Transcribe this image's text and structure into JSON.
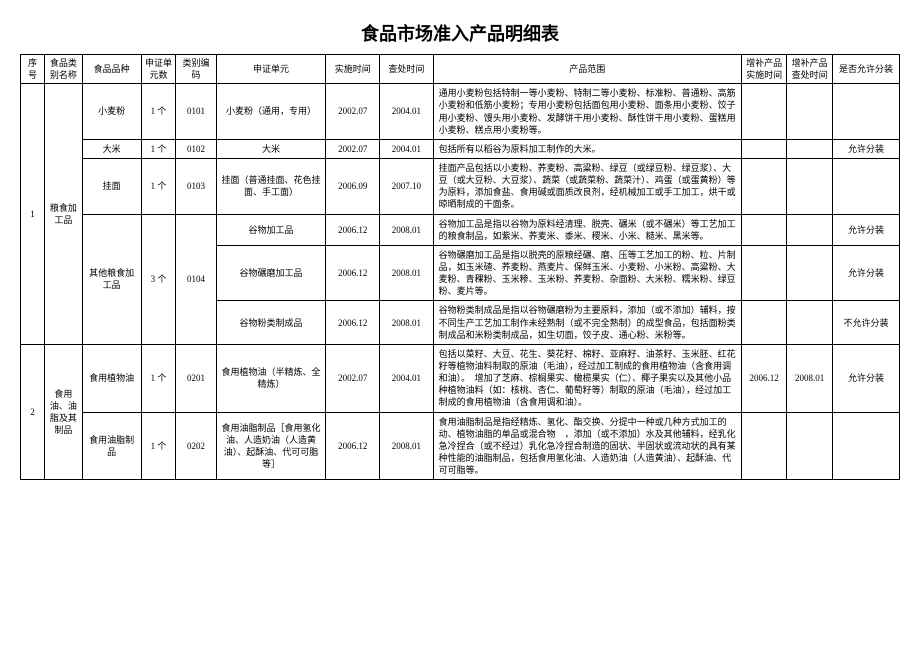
{
  "title": "食品市场准入产品明细表",
  "headers": {
    "seq": "序号",
    "cat": "食品类别名称",
    "var": "食品品种",
    "ucnt": "申证单元数",
    "ccode": "类别编码",
    "unit": "申证单元",
    "itime": "实施时间",
    "ctime": "查处时间",
    "scope": "产品范围",
    "atime": "增补产品实施时间",
    "btime": "增补产品查处时间",
    "split": "是否允许分装"
  },
  "rows": {
    "r1": {
      "seq": "1",
      "cat": "粮食加工品",
      "var": "小麦粉",
      "ucnt": "1 个",
      "ccode": "0101",
      "unit": "小麦粉（通用，专用）",
      "itime": "2002.07",
      "ctime": "2004.01",
      "scope": "通用小麦粉包括特制一等小麦粉、特制二等小麦粉、标准粉、普通粉、高筋小麦粉和低筋小麦粉；专用小麦粉包括面包用小麦粉、面条用小麦粉、饺子用小麦粉、馒头用小麦粉、发酵饼干用小麦粉、酥性饼干用小麦粉、蛋糕用小麦粉、糕点用小麦粉等。",
      "split": ""
    },
    "r2": {
      "var": "大米",
      "ucnt": "1 个",
      "ccode": "0102",
      "unit": "大米",
      "itime": "2002.07",
      "ctime": "2004.01",
      "scope": "包括所有以稻谷为原料加工制作的大米。",
      "split": "允许分装"
    },
    "r3": {
      "var": "挂面",
      "ucnt": "1 个",
      "ccode": "0103",
      "unit": "挂面（普通挂面、花色挂面、手工面）",
      "itime": "2006.09",
      "ctime": "2007.10",
      "scope": "挂面产品包括以小麦粉、荞麦粉、高粱粉、绿豆（或绿豆粉、绿豆浆）、大豆（或大豆粉、大豆浆）、蔬菜（或蔬菜粉、蔬菜汁）、鸡蛋（或蛋黄粉）等为原料，添加食盐、食用碱或面质改良剂，经机械加工或手工加工，烘干或晾晒制成的干面条。",
      "split": ""
    },
    "r4": {
      "var": "其他粮食加工品",
      "ucnt": "3 个",
      "ccode": "0104",
      "unit": "谷物加工品",
      "itime": "2006.12",
      "ctime": "2008.01",
      "scope": "谷物加工品是指以谷物为原料经清理、脱壳、碾米（或不碾米）等工艺加工的粮食制品，如紫米、荞麦米、黍米、稷米、小米、糙米、黑米等。",
      "split": "允许分装"
    },
    "r5": {
      "unit": "谷物碾磨加工品",
      "itime": "2006.12",
      "ctime": "2008.01",
      "scope": "谷物碾磨加工品是指以脱壳的原粮经碾、磨、压等工艺加工的粉、粒、片制品，如玉米碴、荞麦粉、燕麦片、保鲜玉米、小麦粉、小米粉、高粱粉、大麦粉、青稞粉、玉米糁、玉米粉、荞麦粉、杂面粉、大米粉、糯米粉、绿豆粉、麦片等。",
      "split": "允许分装"
    },
    "r6": {
      "unit": "谷物粉类制成品",
      "itime": "2006.12",
      "ctime": "2008.01",
      "scope": "谷物粉类制成品是指以谷物碾磨粉为主要原料，添加（或不添加）辅料，按不同生产工艺加工制作未经熟制（或不完全熟制）的成型食品，包括面粉类制成品和米粉类制成品，如生切面，饺子皮、通心粉、米粉等。",
      "split": "不允许分装"
    },
    "r7": {
      "seq": "2",
      "cat": "食用油、油脂及其制品",
      "var": "食用植物油",
      "ucnt": "1 个",
      "ccode": "0201",
      "unit": "食用植物油（半精炼、全精炼）",
      "itime": "2002.07",
      "ctime": "2004.01",
      "scope": "包括以菜籽、大豆、花生、葵花籽、棉籽、亚麻籽、油茶籽、玉米胚、红花籽等植物油料制取的原油（毛油），经过加工制成的食用植物油（含食用调和油）。　增加了芝麻、棕榈果实、橄榄果实（仁）、椰子果实以及其他小品种植物油料（如：核桃、杏仁、葡萄籽等）制取的原油（毛油），经过加工制成的食用植物油（含食用调和油）。",
      "atime": "2006.12",
      "btime": "2008.01",
      "split": "允许分装"
    },
    "r8": {
      "var": "食用油脂制品",
      "ucnt": "1 个",
      "ccode": "0202",
      "unit": "食用油脂制品［食用氢化油、人造奶油（人造黄油）、起酥油、代可可脂等］",
      "itime": "2006.12",
      "ctime": "2008.01",
      "scope": "食用油脂制品是指经精炼、氢化、酯交换、分提中一种或几种方式加工的动、植物油脂的单品或混合物　，添加（或不添加）水及其他辅料，经乳化急冷捏合（或不经过）乳化急冷捏合制造的固状、半固状或流动状的具有某种性能的油脂制品，包括食用氢化油、人造奶油（人造黄油）、起酥油、代可可脂等。",
      "split": ""
    }
  }
}
